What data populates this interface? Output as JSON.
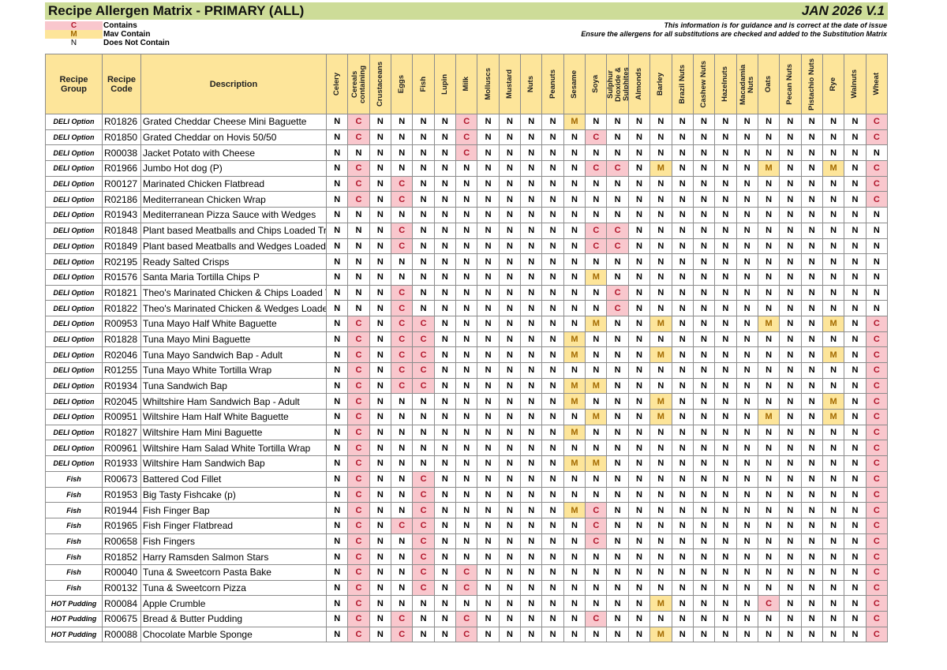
{
  "header": {
    "title": "Recipe Allergen Matrix - PRIMARY (ALL)",
    "version": "JAN 2026 V.1",
    "note1": "This information is for guidance and is correct at the date of issue",
    "note2": "Ensure the allergens for all substitutions are checked and added to the Substitution Matrix"
  },
  "legend": [
    {
      "key": "C",
      "label": "Contains",
      "color": "#f9c7cd"
    },
    {
      "key": "M",
      "label": "Mav Contain",
      "color": "#fde59a"
    },
    {
      "key": "N",
      "label": "Does Not Contain",
      "color": "#ffffff"
    }
  ],
  "columns": {
    "group": "Recipe Group",
    "code": "Recipe Code",
    "description": "Description"
  },
  "allergens": [
    "Celery",
    "Cereals containing",
    "Crustaceans",
    "Eggs",
    "Fish",
    "Lupin",
    "Milk",
    "Molluscs",
    "Mustard",
    "Nuts",
    "Peanuts",
    "Sesame",
    "Soya",
    "Sulphur Dioxide & Sulphites",
    "Almonds",
    "Barley",
    "Brazil Nuts",
    "Cashew Nuts",
    "Hazelnuts",
    "Macadamia Nuts",
    "Oats",
    "Pecan Nuts",
    "Pistachio Nuts",
    "Rye",
    "Walnuts",
    "Wheat"
  ],
  "rows": [
    {
      "group": "DELI Option",
      "code": "R01826",
      "description": "Grated Cheddar Cheese Mini Baguette",
      "values": "NCNNNNCNNNNMNNNNNNNNNNNNNC"
    },
    {
      "group": "DELI Option",
      "code": "R01850",
      "description": "Grated Cheddar on Hovis 50/50",
      "values": "NCNNNNCNNNNNCNNNNNNNNNNNNC"
    },
    {
      "group": "DELI Option",
      "code": "R00038",
      "description": "Jacket Potato with Cheese",
      "values": "NNNNNNCNNNNNNNNNNNNNNNNNNN"
    },
    {
      "group": "DELI Option",
      "code": "R01966",
      "description": "Jumbo Hot dog (P)",
      "values": "NCNNNNNNNNNNCCNMNNNNMNNMNC"
    },
    {
      "group": "DELI Option",
      "code": "R00127",
      "description": "Marinated Chicken Flatbread",
      "values": "NCNCNNNNNNNNNNNNNNNNNNNNNC"
    },
    {
      "group": "DELI Option",
      "code": "R02186",
      "description": "Mediterranean Chicken Wrap",
      "values": "NCNCNNNNNNNNNNNNNNNNNNNNNC"
    },
    {
      "group": "DELI Option",
      "code": "R01943",
      "description": "Mediterranean Pizza Sauce with Wedges",
      "values": "NNNNNNNNNNNNNNNNNNNNNNNNNN"
    },
    {
      "group": "DELI Option",
      "code": "R01848",
      "description": "Plant based Meatballs and Chips Loaded Tra",
      "values": "NNNCNNNNNNNNCCNNNNNNNNNNNN"
    },
    {
      "group": "DELI Option",
      "code": "R01849",
      "description": "Plant based Meatballs and Wedges Loaded T",
      "values": "NNNCNNNNNNNNCCNNNNNNNNNNNN"
    },
    {
      "group": "DELI Option",
      "code": "R02195",
      "description": "Ready Salted Crisps",
      "values": "NNNNNNNNNNNNNNNNNNNNNNNNNN"
    },
    {
      "group": "DELI Option",
      "code": "R01576",
      "description": "Santa Maria Tortilla Chips P",
      "values": "NNNNNNNNNNNNMNNNNNNNNNNNNN"
    },
    {
      "group": "DELI Option",
      "code": "R01821",
      "description": "Theo's Marinated Chicken & Chips Loaded T",
      "values": "NNNCNNNNNNNNNCNNNNNNNNNNNN"
    },
    {
      "group": "DELI Option",
      "code": "R01822",
      "description": "Theo's Marinated Chicken & Wedges Loaded",
      "values": "NNNCNNNNNNNNNCNNNNNNNNNNNN"
    },
    {
      "group": "DELI Option",
      "code": "R00953",
      "description": "Tuna Mayo Half White Baguette",
      "values": "NCNCCNNNNNNNMNNMNNNNMNNMNC"
    },
    {
      "group": "DELI Option",
      "code": "R01828",
      "description": "Tuna Mayo Mini Baguette",
      "values": "NCNCCNNNNNNMNNNNNNNNNNNNNC"
    },
    {
      "group": "DELI Option",
      "code": "R02046",
      "description": "Tuna Mayo Sandwich Bap - Adult",
      "values": "NCNCCNNNNNNMNNNMNNNNNNNMNC"
    },
    {
      "group": "DELI Option",
      "code": "R01255",
      "description": "Tuna Mayo White Tortilla Wrap",
      "values": "NCNCCNNNNNNNNNNNNNNNNNNNNC"
    },
    {
      "group": "DELI Option",
      "code": "R01934",
      "description": "Tuna Sandwich Bap",
      "values": "NCNCCNNNNNNMMNNNNNNNNNNNNC"
    },
    {
      "group": "DELI Option",
      "code": "R02045",
      "description": "Whiltshire Ham Sandwich Bap - Adult",
      "values": "NCNNNNNNNNNMNNNMNNNNNNNMNC"
    },
    {
      "group": "DELI Option",
      "code": "R00951",
      "description": "Wiltshire Ham Half White Baguette",
      "values": "NCNNNNNNNNNNMNNMNNNNMNNMNC"
    },
    {
      "group": "DELI Option",
      "code": "R01827",
      "description": "Wiltshire Ham Mini Baguette",
      "values": "NCNNNNNNNNNMNNNNNNNNNNNNNC"
    },
    {
      "group": "DELI Option",
      "code": "R00961",
      "description": "Wiltshire Ham Salad White Tortilla Wrap",
      "values": "NCNNNNNNNNNNNNNNNNNNNNNNNC"
    },
    {
      "group": "DELI Option",
      "code": "R01933",
      "description": "Wiltshire Ham Sandwich Bap",
      "values": "NCNNNNNNNNNMMNNNNNNNNNNNNC"
    },
    {
      "group": "Fish",
      "code": "R00673",
      "description": "Battered Cod Fillet",
      "values": "NCNNCNNNNNNNNNNNNNNNNNNNNC"
    },
    {
      "group": "Fish",
      "code": "R01953",
      "description": "Big Tasty Fishcake (p)",
      "values": "NCNNCNNNNNNNNNNNNNNNNNNNNC"
    },
    {
      "group": "Fish",
      "code": "R01944",
      "description": "Fish Finger Bap",
      "values": "NCNNCNNNNNNMCNNNNNNNNNNNNC"
    },
    {
      "group": "Fish",
      "code": "R01965",
      "description": "Fish Finger Flatbread",
      "values": "NCNCCNNNNNNNCNNNNNNNNNNNNC"
    },
    {
      "group": "Fish",
      "code": "R00658",
      "description": "Fish Fingers",
      "values": "NCNNCNNNNNNNCNNNNNNNNNNNNC"
    },
    {
      "group": "Fish",
      "code": "R01852",
      "description": "Harry Ramsden Salmon Stars",
      "values": "NCNNCNNNNNNNNNNNNNNNNNNNNC"
    },
    {
      "group": "Fish",
      "code": "R00040",
      "description": "Tuna & Sweetcorn Pasta Bake",
      "values": "NCNNCNCNNNNNNNNNNNNNNNNNNC"
    },
    {
      "group": "Fish",
      "code": "R00132",
      "description": "Tuna & Sweetcorn Pizza",
      "values": "NCNNCNCNNNNNNNNNNNNNNNNNNC"
    },
    {
      "group": "HOT Pudding",
      "code": "R00084",
      "description": "Apple Crumble",
      "values": "NCNNNNNNNNNNNNNMNNNNCNNNNC"
    },
    {
      "group": "HOT Pudding",
      "code": "R00675",
      "description": "Bread & Butter Pudding",
      "values": "NCNCNNCNNNNNCNNNNNNNNNNNNC"
    },
    {
      "group": "HOT Pudding",
      "code": "R00088",
      "description": "Chocolate Marble Sponge",
      "values": "NCNCNNCNNNNNNNNMNNNNNNNNNC"
    }
  ]
}
